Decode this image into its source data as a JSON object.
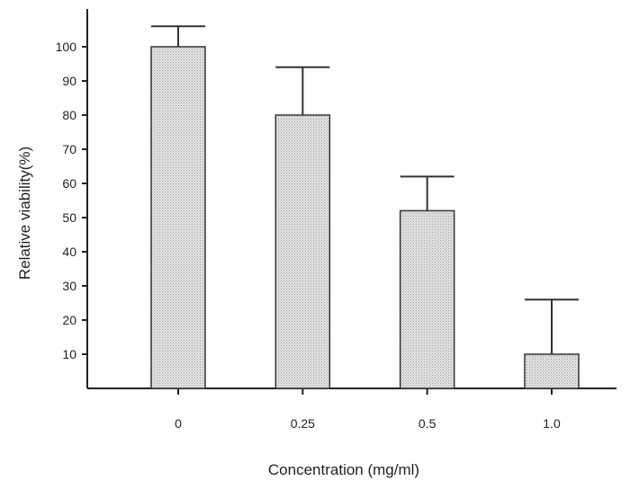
{
  "chart_data": {
    "type": "bar",
    "categories": [
      "0",
      "0.25",
      "0.5",
      "1.0"
    ],
    "values": [
      100,
      80,
      52,
      10
    ],
    "error_upper": [
      106,
      94,
      62,
      26
    ],
    "ylabel": "Relative viability(%)",
    "xlabel": "Concentration (mg/ml)",
    "ylim": [
      0,
      110
    ],
    "yticks": [
      10,
      20,
      30,
      40,
      50,
      60,
      70,
      80,
      90,
      100
    ],
    "grid": false,
    "legend": "none"
  }
}
